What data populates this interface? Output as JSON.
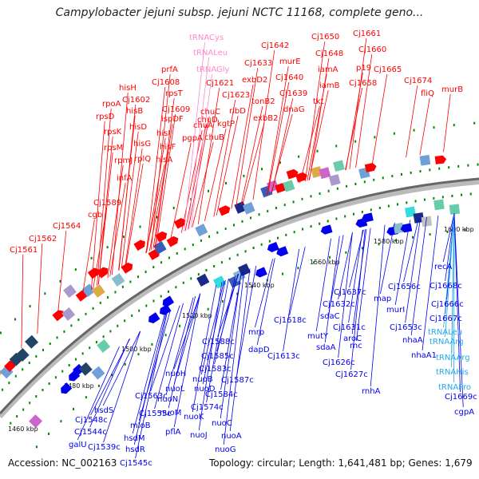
{
  "title": "Campylobacter jejuni subsp. jejuni NCTC 11168, complete geno...",
  "footer": {
    "accession": "Accession: NC_002163",
    "summary": "Topology: circular; Length: 1,641,481 bp; Genes: 1,679"
  },
  "colors": {
    "forward": "#ff0000",
    "reverse": "#0000ee",
    "trna_forward": "#ff88cc",
    "trna_reverse": "#22aaee",
    "backbone": "#777777",
    "tick": "#008800"
  },
  "position_labels": [
    "1460 kbp",
    "1480 kbp",
    "1500 kbp",
    "1520 kbp",
    "1540 kbp",
    "1560 kbp",
    "1580 kbp",
    "1600 kbp"
  ],
  "forward_labels": [
    "Cj1561",
    "Cj1562",
    "Cj1564",
    "cgb",
    "Cj1589",
    "infA",
    "rpmJ",
    "rpsM",
    "rpsK",
    "rpsD",
    "rpoA",
    "Cj1602",
    "hisH",
    "hisB",
    "hisD",
    "hisG",
    "rplQ",
    "hisA",
    "hisF",
    "hisI",
    "Cj1608",
    "prfA",
    "rpsT",
    "ispDF",
    "Cj1609",
    "pgpA",
    "chuD",
    "chuC",
    "chuA",
    "chuB",
    "Cj1621",
    "Cj1623",
    "kgtP",
    "ribD",
    "tRNACys",
    "tRNALeu",
    "tRNAGly",
    "Cj1633",
    "exbD2",
    "tonB2",
    "exbB2",
    "Cj1642",
    "murE",
    "Cj1640",
    "Cj1639",
    "dnaG",
    "Cj1650",
    "Cj1648",
    "iamA",
    "iamB",
    "tkt",
    "Cj1661",
    "Cj1660",
    "p19",
    "Cj1658",
    "Cj1665",
    "Cj1674",
    "fliQ",
    "murB"
  ],
  "reverse_labels": [
    "galU",
    "Cj1539c",
    "Cj1545c",
    "hsdR",
    "Cj1544c",
    "Cj1548c",
    "hsdS",
    "hsdM",
    "mloB",
    "Cj1555c",
    "Cj1563c",
    "pflA",
    "nuoM",
    "nuoN",
    "nuoH",
    "nuoL",
    "nuoK",
    "nuoJ",
    "nuoC",
    "nuoA",
    "nuoG",
    "Cj1574c",
    "nuoD",
    "nuoB",
    "Cj1584c",
    "Cj1583c",
    "Cj1587c",
    "Cj1585c",
    "Cj1588c",
    "mrp",
    "dapD",
    "Cj1613c",
    "Cj1618c",
    "mutY",
    "sdaA",
    "sdaC",
    "Cj1632c",
    "Cj1631c",
    "aroC",
    "Cj1626c",
    "Cj1627c",
    "rnc",
    "Cj1637c",
    "rnhA",
    "map",
    "murI",
    "Cj1656c",
    "Cj1653c",
    "nhaA",
    "nhaA1",
    "recA",
    "Cj1668c",
    "Cj1666c",
    "Cj1667c",
    "tRNALeu",
    "tRNAArg",
    "tRNAArg",
    "tRNAHis",
    "tRNAPro",
    "Cj1669c",
    "cgpA"
  ]
}
